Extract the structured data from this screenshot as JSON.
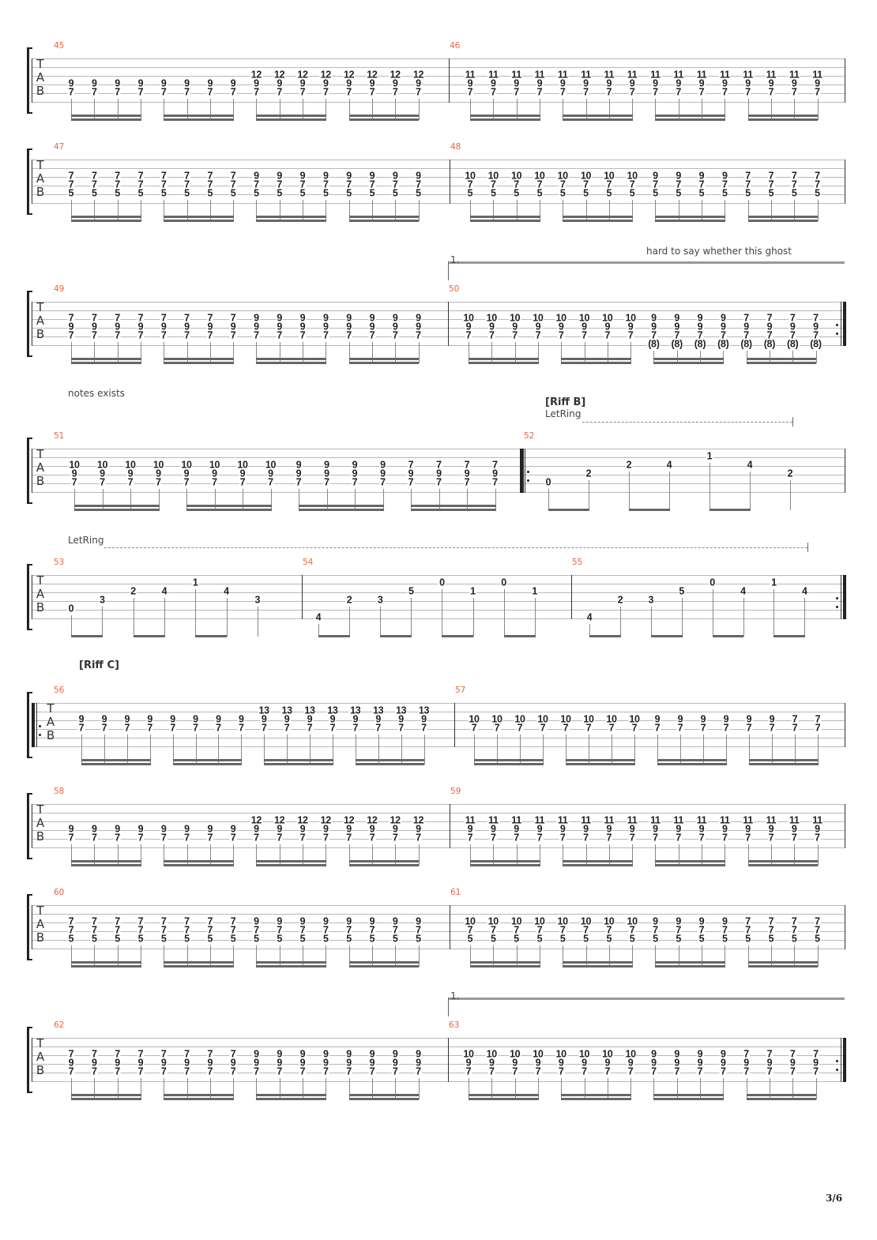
{
  "page_number": "3/6",
  "tab_clef": [
    "T",
    "A",
    "B"
  ],
  "colors": {
    "measure_number": "#f0643c",
    "staff_line": "#b8b8b8",
    "note": "#222222"
  },
  "annotations": {
    "ghost_note_text_1": "hard to say whether this ghost",
    "ghost_note_text_2": "notes exists",
    "riff_b": "[Riff B]",
    "riff_c": "[Riff C]",
    "let_ring_1": "LetRing",
    "let_ring_2": "LetRing"
  },
  "measures": [
    {
      "number": "45",
      "rhythm": "16th",
      "beats": [
        "4:9 5:7",
        "4:9 5:7",
        "4:9 5:7",
        "4:9 5:7",
        "4:9 5:7",
        "4:9 5:7",
        "4:9 5:7",
        "4:9 5:7",
        "3:12 4:9 5:7",
        "3:12 4:9 5:7",
        "3:12 4:9 5:7",
        "3:12 4:9 5:7",
        "3:12 4:9 5:7",
        "3:12 4:9 5:7",
        "3:12 4:9 5:7",
        "3:12 4:9 5:7"
      ]
    },
    {
      "number": "46",
      "rhythm": "16th",
      "beats": [
        "3:11 4:9 5:7",
        "3:11 4:9 5:7",
        "3:11 4:9 5:7",
        "3:11 4:9 5:7",
        "3:11 4:9 5:7",
        "3:11 4:9 5:7",
        "3:11 4:9 5:7",
        "3:11 4:9 5:7",
        "3:11 4:9 5:7",
        "3:11 4:9 5:7",
        "3:11 4:9 5:7",
        "3:11 4:9 5:7",
        "3:11 4:9 5:7",
        "3:11 4:9 5:7",
        "3:11 4:9 5:7",
        "3:11 4:9 5:7"
      ]
    },
    {
      "number": "47",
      "rhythm": "16th",
      "beats": [
        "3:7 4:7 5:5",
        "3:7 4:7 5:5",
        "3:7 4:7 5:5",
        "3:7 4:7 5:5",
        "3:7 4:7 5:5",
        "3:7 4:7 5:5",
        "3:7 4:7 5:5",
        "3:7 4:7 5:5",
        "3:9 4:7 5:5",
        "3:9 4:7 5:5",
        "3:9 4:7 5:5",
        "3:9 4:7 5:5",
        "3:9 4:7 5:5",
        "3:9 4:7 5:5",
        "3:9 4:7 5:5",
        "3:9 4:7 5:5"
      ]
    },
    {
      "number": "48",
      "rhythm": "16th",
      "beats": [
        "3:10 4:7 5:5",
        "3:10 4:7 5:5",
        "3:10 4:7 5:5",
        "3:10 4:7 5:5",
        "3:10 4:7 5:5",
        "3:10 4:7 5:5",
        "3:10 4:7 5:5",
        "3:10 4:7 5:5",
        "3:9 4:7 5:5",
        "3:9 4:7 5:5",
        "3:9 4:7 5:5",
        "3:9 4:7 5:5",
        "3:7 4:7 5:5",
        "3:7 4:7 5:5",
        "3:7 4:7 5:5",
        "3:7 4:7 5:5"
      ]
    },
    {
      "number": "49",
      "rhythm": "16th",
      "beats": [
        "3:7 4:9 5:7",
        "3:7 4:9 5:7",
        "3:7 4:9 5:7",
        "3:7 4:9 5:7",
        "3:7 4:9 5:7",
        "3:7 4:9 5:7",
        "3:7 4:9 5:7",
        "3:7 4:9 5:7",
        "3:9 4:9 5:7",
        "3:9 4:9 5:7",
        "3:9 4:9 5:7",
        "3:9 4:9 5:7",
        "3:9 4:9 5:7",
        "3:9 4:9 5:7",
        "3:9 4:9 5:7",
        "3:9 4:9 5:7"
      ]
    },
    {
      "number": "50",
      "rhythm": "16th",
      "volta": "1.",
      "repeat_end": true,
      "beats": [
        "3:10 4:9 5:7",
        "3:10 4:9 5:7",
        "3:10 4:9 5:7",
        "3:10 4:9 5:7",
        "3:10 4:9 5:7",
        "3:10 4:9 5:7",
        "3:10 4:9 5:7",
        "3:10 4:9 5:7",
        "3:9 4:9 5:7 6:(8)",
        "3:9 4:9 5:7 6:(8)",
        "3:9 4:9 5:7 6:(8)",
        "3:9 4:9 5:7 6:(8)",
        "3:7 4:9 5:7 6:(8)",
        "3:7 4:9 5:7 6:(8)",
        "3:7 4:9 5:7 6:(8)",
        "3:7 4:9 5:7 6:(8)"
      ]
    },
    {
      "number": "51",
      "rhythm": "16th",
      "beats": [
        "3:10 4:9 5:7",
        "3:10 4:9 5:7",
        "3:10 4:9 5:7",
        "3:10 4:9 5:7",
        "3:10 4:9 5:7",
        "3:10 4:9 5:7",
        "3:10 4:9 5:7",
        "3:10 4:9 5:7",
        "3:9 4:9 5:7",
        "3:9 4:9 5:7",
        "3:9 4:9 5:7",
        "3:9 4:9 5:7",
        "3:7 4:9 5:7",
        "3:7 4:9 5:7",
        "3:7 4:9 5:7",
        "3:7 4:9 5:7"
      ]
    },
    {
      "number": "52",
      "rhythm": "8th",
      "repeat_start": true,
      "last_quarter": true,
      "beats": [
        "5:0",
        "4:2",
        "3:2",
        "3:4",
        "2:1",
        "3:4",
        "4:2"
      ]
    },
    {
      "number": "53",
      "rhythm": "8th",
      "last_quarter": true,
      "beats": [
        "5:0",
        "4:3",
        "3:2",
        "3:4",
        "2:1",
        "3:4",
        "4:3"
      ]
    },
    {
      "number": "54",
      "rhythm": "8th",
      "beats": [
        "6:4",
        "4:2",
        "4:3",
        "3:5",
        "2:0",
        "3:1",
        "2:0",
        "3:1"
      ]
    },
    {
      "number": "55",
      "rhythm": "8th",
      "repeat_end": true,
      "beats": [
        "6:4",
        "4:2",
        "4:3",
        "3:5",
        "2:0",
        "3:4",
        "2:1",
        "3:4"
      ]
    },
    {
      "number": "56",
      "rhythm": "16th",
      "repeat_start": true,
      "beats": [
        "3:9 4:7",
        "3:9 4:7",
        "3:9 4:7",
        "3:9 4:7",
        "3:9 4:7",
        "3:9 4:7",
        "3:9 4:7",
        "3:9 4:7",
        "2:13 3:9 4:7",
        "2:13 3:9 4:7",
        "2:13 3:9 4:7",
        "2:13 3:9 4:7",
        "2:13 3:9 4:7",
        "2:13 3:9 4:7",
        "2:13 3:9 4:7",
        "2:13 3:9 4:7"
      ]
    },
    {
      "number": "57",
      "rhythm": "16th",
      "beats": [
        "3:10 4:7",
        "3:10 4:7",
        "3:10 4:7",
        "3:10 4:7",
        "3:10 4:7",
        "3:10 4:7",
        "3:10 4:7",
        "3:10 4:7",
        "3:9 4:7",
        "3:9 4:7",
        "3:9 4:7",
        "3:9 4:7",
        "3:9 4:7",
        "3:9 4:7",
        "3:7 4:7",
        "3:7 4:7"
      ]
    },
    {
      "number": "58",
      "rhythm": "16th",
      "beats": [
        "4:9 5:7",
        "4:9 5:7",
        "4:9 5:7",
        "4:9 5:7",
        "4:9 5:7",
        "4:9 5:7",
        "4:9 5:7",
        "4:9 5:7",
        "3:12 4:9 5:7",
        "3:12 4:9 5:7",
        "3:12 4:9 5:7",
        "3:12 4:9 5:7",
        "3:12 4:9 5:7",
        "3:12 4:9 5:7",
        "3:12 4:9 5:7",
        "3:12 4:9 5:7"
      ]
    },
    {
      "number": "59",
      "rhythm": "16th",
      "beats": [
        "3:11 4:9 5:7",
        "3:11 4:9 5:7",
        "3:11 4:9 5:7",
        "3:11 4:9 5:7",
        "3:11 4:9 5:7",
        "3:11 4:9 5:7",
        "3:11 4:9 5:7",
        "3:11 4:9 5:7",
        "3:11 4:9 5:7",
        "3:11 4:9 5:7",
        "3:11 4:9 5:7",
        "3:11 4:9 5:7",
        "3:11 4:9 5:7",
        "3:11 4:9 5:7",
        "3:11 4:9 5:7",
        "3:11 4:9 5:7"
      ]
    },
    {
      "number": "60",
      "rhythm": "16th",
      "beats": [
        "3:7 4:7 5:5",
        "3:7 4:7 5:5",
        "3:7 4:7 5:5",
        "3:7 4:7 5:5",
        "3:7 4:7 5:5",
        "3:7 4:7 5:5",
        "3:7 4:7 5:5",
        "3:7 4:7 5:5",
        "3:9 4:7 5:5",
        "3:9 4:7 5:5",
        "3:9 4:7 5:5",
        "3:9 4:7 5:5",
        "3:9 4:7 5:5",
        "3:9 4:7 5:5",
        "3:9 4:7 5:5",
        "3:9 4:7 5:5"
      ]
    },
    {
      "number": "61",
      "rhythm": "16th",
      "beats": [
        "3:10 4:7 5:5",
        "3:10 4:7 5:5",
        "3:10 4:7 5:5",
        "3:10 4:7 5:5",
        "3:10 4:7 5:5",
        "3:10 4:7 5:5",
        "3:10 4:7 5:5",
        "3:10 4:7 5:5",
        "3:9 4:7 5:5",
        "3:9 4:7 5:5",
        "3:9 4:7 5:5",
        "3:9 4:7 5:5",
        "3:7 4:7 5:5",
        "3:7 4:7 5:5",
        "3:7 4:7 5:5",
        "3:7 4:7 5:5"
      ]
    },
    {
      "number": "62",
      "rhythm": "16th",
      "beats": [
        "3:7 4:9 5:7",
        "3:7 4:9 5:7",
        "3:7 4:9 5:7",
        "3:7 4:9 5:7",
        "3:7 4:9 5:7",
        "3:7 4:9 5:7",
        "3:7 4:9 5:7",
        "3:7 4:9 5:7",
        "3:9 4:9 5:7",
        "3:9 4:9 5:7",
        "3:9 4:9 5:7",
        "3:9 4:9 5:7",
        "3:9 4:9 5:7",
        "3:9 4:9 5:7",
        "3:9 4:9 5:7",
        "3:9 4:9 5:7"
      ]
    },
    {
      "number": "63",
      "rhythm": "16th",
      "volta": "1.",
      "repeat_end": true,
      "beats": [
        "3:10 4:9 5:7",
        "3:10 4:9 5:7",
        "3:10 4:9 5:7",
        "3:10 4:9 5:7",
        "3:10 4:9 5:7",
        "3:10 4:9 5:7",
        "3:10 4:9 5:7",
        "3:10 4:9 5:7",
        "3:9 4:9 5:7",
        "3:9 4:9 5:7",
        "3:9 4:9 5:7",
        "3:9 4:9 5:7",
        "3:7 4:9 5:7",
        "3:7 4:9 5:7",
        "3:7 4:9 5:7",
        "3:7 4:9 5:7"
      ]
    }
  ]
}
